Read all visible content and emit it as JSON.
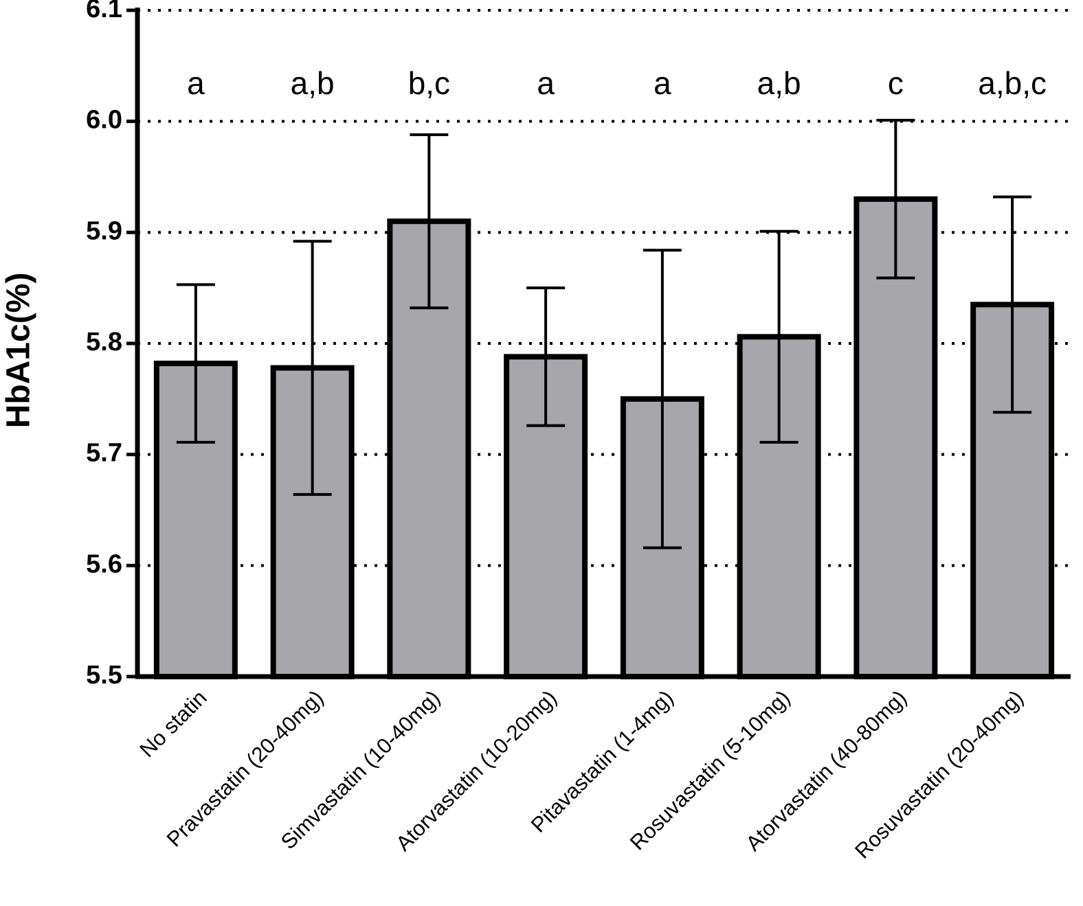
{
  "chart_data": {
    "type": "bar",
    "y_label": "HbA1c(%)",
    "categories": [
      "No statin",
      "Pravastatin (20-40mg)",
      "Simvastatin (10-40mg)",
      "Atorvastatin (10-20mg)",
      "Pitavastatin (1-4mg)",
      "Rosuvastatin (5-10mg)",
      "Atorvastatin (40-80mg)",
      "Rosuvastatin (20-40mg)"
    ],
    "values": [
      5.782,
      5.778,
      5.91,
      5.788,
      5.75,
      5.806,
      5.93,
      5.835
    ],
    "errors": [
      0.071,
      0.114,
      0.078,
      0.062,
      0.134,
      0.095,
      0.071,
      0.097
    ],
    "annotations": [
      "a",
      "a,b",
      "b,c",
      "a",
      "a",
      "a,b",
      "c",
      "a,b,c"
    ],
    "color": "#a7a6ab",
    "ylim": [
      5.5,
      6.1
    ],
    "yticks": [
      5.5,
      5.6,
      5.7,
      5.8,
      5.9,
      {
        "value": 6,
        "label": "6.0"
      },
      6.1
    ],
    "grid": true
  }
}
